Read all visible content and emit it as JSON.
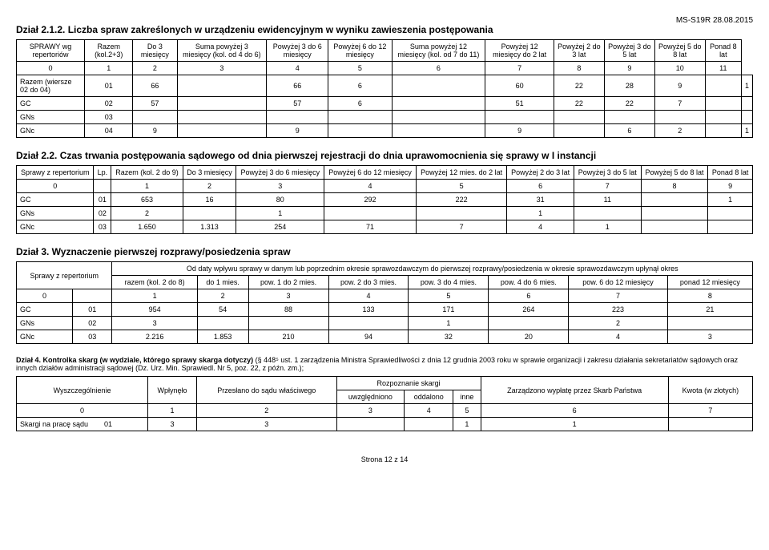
{
  "doc_id": "MS-S19R 28.08.2015",
  "section212": {
    "title": "Dział 2.1.2. Liczba spraw zakreślonych w urządzeniu ewidencyjnym w wyniku zawieszenia postępowania",
    "headers": [
      "SPRAWY wg repertoriów",
      "Razem (kol.2+3)",
      "Do 3 miesięcy",
      "Suma powyżej 3 miesięcy (kol. od 4 do 6)",
      "Powyżej 3 do 6 miesięcy",
      "Powyżej 6 do 12 miesięcy",
      "Suma powyżej 12 miesięcy (kol. od 7 do 11)",
      "Powyżej 12 miesięcy do 2 lat",
      "Powyżej 2 do 3 lat",
      "Powyżej 3 do 5 lat",
      "Powyżej 5 do 8 lat",
      "Ponad 8 lat"
    ],
    "colnums": [
      "0",
      "1",
      "2",
      "3",
      "4",
      "5",
      "6",
      "7",
      "8",
      "9",
      "10",
      "11"
    ],
    "rows": [
      {
        "label": "Razem (wiersze 02 do 04)",
        "lp": "01",
        "v": [
          "66",
          "",
          "66",
          "6",
          "",
          "60",
          "22",
          "28",
          "9",
          "",
          "1"
        ]
      },
      {
        "label": "GC",
        "lp": "02",
        "v": [
          "57",
          "",
          "57",
          "6",
          "",
          "51",
          "22",
          "22",
          "7",
          "",
          ""
        ]
      },
      {
        "label": "GNs",
        "lp": "03",
        "v": [
          "",
          "",
          "",
          "",
          "",
          "",
          "",
          "",
          "",
          "",
          ""
        ]
      },
      {
        "label": "GNc",
        "lp": "04",
        "v": [
          "9",
          "",
          "9",
          "",
          "",
          "9",
          "",
          "6",
          "2",
          "",
          "1"
        ]
      }
    ]
  },
  "section22": {
    "title": "Dział 2.2. Czas trwania postępowania sądowego od dnia pierwszej rejestracji do dnia uprawomocnienia się sprawy w I instancji",
    "headers": [
      "Sprawy z repertorium",
      "Lp.",
      "Razem (kol. 2 do 9)",
      "Do 3 miesięcy",
      "Powyżej 3 do 6 miesięcy",
      "Powyżej 6 do 12 miesięcy",
      "Powyżej 12 mies. do 2 lat",
      "Powyżej 2 do 3 lat",
      "Powyżej 3 do 5 lat",
      "Powyżej 5 do 8 lat",
      "Ponad 8 lat"
    ],
    "colnums": [
      "0",
      "",
      "1",
      "2",
      "3",
      "4",
      "5",
      "6",
      "7",
      "8",
      "9"
    ],
    "rows": [
      {
        "label": "GC",
        "lp": "01",
        "v": [
          "653",
          "16",
          "80",
          "292",
          "222",
          "31",
          "11",
          "",
          "1"
        ]
      },
      {
        "label": "GNs",
        "lp": "02",
        "v": [
          "2",
          "",
          "1",
          "",
          "",
          "1",
          "",
          "",
          ""
        ]
      },
      {
        "label": "GNc",
        "lp": "03",
        "v": [
          "1.650",
          "1.313",
          "254",
          "71",
          "7",
          "4",
          "1",
          "",
          ""
        ]
      }
    ]
  },
  "section3": {
    "title": "Dział 3. Wyznaczenie pierwszej rozprawy/posiedzenia spraw",
    "superheader": "Od daty wpływu sprawy w danym lub poprzednim okresie sprawozdawczym do pierwszej rozprawy/posiedzenia w okresie sprawozdawczym upłynął okres",
    "headers_row1": "Sprawy z repertorium",
    "headers": [
      "razem (kol. 2 do 8)",
      "do 1 mies.",
      "pow. 1 do 2 mies.",
      "pow. 2 do 3 mies.",
      "pow. 3 do 4 mies.",
      "pow. 4 do 6 mies.",
      "pow. 6 do 12 miesięcy",
      "ponad 12 miesięcy"
    ],
    "colnums": [
      "0",
      "",
      "1",
      "2",
      "3",
      "4",
      "5",
      "6",
      "7",
      "8"
    ],
    "rows": [
      {
        "label": "GC",
        "lp": "01",
        "v": [
          "954",
          "54",
          "88",
          "133",
          "171",
          "264",
          "223",
          "21"
        ]
      },
      {
        "label": "GNs",
        "lp": "02",
        "v": [
          "3",
          "",
          "",
          "",
          "1",
          "",
          "2",
          ""
        ]
      },
      {
        "label": "GNc",
        "lp": "03",
        "v": [
          "2.216",
          "1.853",
          "210",
          "94",
          "32",
          "20",
          "4",
          "3"
        ]
      }
    ]
  },
  "section4": {
    "title": "Dział 4. Kontrolka skarg (w wydziale, którego sprawy skarga dotyczy)",
    "note": " (§ 448⁵ ust. 1 zarządzenia Ministra Sprawiedliwości z dnia 12 grudnia 2003 roku w sprawie organizacji i zakresu działania sekretariatów sądowych oraz innych działów administracji sądowej (Dz. Urz. Min. Sprawiedl. Nr 5, poz. 22, z późn. zm.);",
    "h1": "Wyszczególnienie",
    "h2": "Wpłynęło",
    "h3": "Przesłano do sądu właściwego",
    "h4": "Rozpoznanie skargi",
    "h4a": "uwzględniono",
    "h4b": "oddalono",
    "h4c": "inne",
    "h5": "Zarządzono wypłatę przez Skarb Państwa",
    "h6": "Kwota (w złotych)",
    "colnums": [
      "0",
      "1",
      "2",
      "3",
      "4",
      "5",
      "6",
      "7"
    ],
    "row": {
      "label": "Skargi na pracę sądu",
      "lp": "01",
      "v": [
        "3",
        "3",
        "",
        "",
        "1",
        "1",
        ""
      ]
    }
  },
  "footer": "Strona 12 z 14"
}
